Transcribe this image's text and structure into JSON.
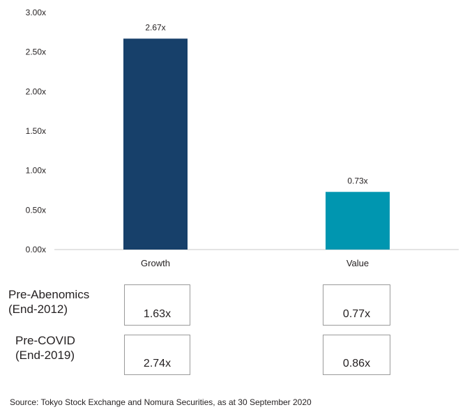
{
  "chart_data": {
    "type": "bar",
    "categories": [
      "Growth",
      "Value"
    ],
    "values": [
      2.67,
      0.73
    ],
    "data_labels": [
      "2.67x",
      "0.73x"
    ],
    "colors": [
      "#17406a",
      "#0096b0"
    ],
    "yticks": [
      "0.00x",
      "0.50x",
      "1.00x",
      "1.50x",
      "2.00x",
      "2.50x",
      "3.00x"
    ],
    "ylim": [
      0,
      3
    ],
    "grid": false,
    "title": "",
    "xlabel": "",
    "ylabel": ""
  },
  "comparison": {
    "rows": [
      {
        "label_line1": "Pre-Abenomics",
        "label_line2": "(End-2012)",
        "growth": "1.63x",
        "value": "0.77x"
      },
      {
        "label_line1": "Pre-COVID",
        "label_line2": "(End-2019)",
        "growth": "2.74x",
        "value": "0.86x"
      }
    ]
  },
  "source": "Source: Tokyo Stock Exchange and Nomura Securities, as at 30 September 2020"
}
